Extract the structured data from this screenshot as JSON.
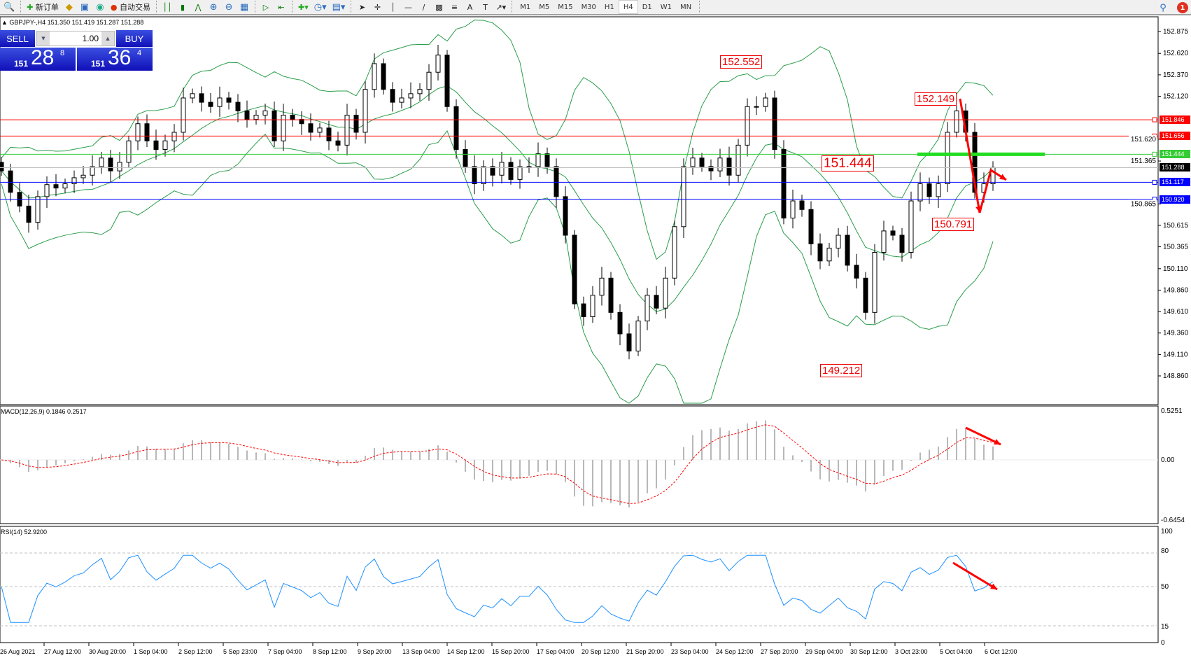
{
  "toolbar": {
    "new_order": "新订单",
    "auto_trading": "自动交易",
    "timeframes": [
      "M1",
      "M5",
      "M15",
      "M30",
      "H1",
      "H4",
      "D1",
      "W1",
      "MN"
    ],
    "active_timeframe": "H4",
    "notification_count": "1"
  },
  "chart": {
    "title": "GBPJPY-,H4  151.350 151.419 151.287 151.288",
    "price_ticks": [
      "152.875",
      "152.620",
      "152.370",
      "152.120",
      "151.620",
      "151.365",
      "150.865",
      "150.615",
      "150.365",
      "150.110",
      "149.860",
      "149.610",
      "149.360",
      "149.110",
      "148.860"
    ],
    "price_range": [
      148.86,
      152.875
    ],
    "levels": [
      {
        "price": 151.846,
        "label": "151.846",
        "color": "#ff0000"
      },
      {
        "price": 151.656,
        "label": "151.656",
        "color": "#ff0000"
      },
      {
        "price": 151.444,
        "label": "151.444",
        "color": "#33cc33"
      },
      {
        "price": 151.288,
        "label": "151.288",
        "color": "#000000",
        "line": "#c0c0c0"
      },
      {
        "price": 151.117,
        "label": "151.117",
        "color": "#0000ff"
      },
      {
        "price": 150.92,
        "label": "150.920",
        "color": "#0000ff"
      }
    ],
    "annotations": [
      "152.552",
      "152.149",
      "151.444",
      "150.791",
      "149.212"
    ],
    "closes": [
      151.25,
      151.0,
      150.84,
      150.65,
      150.95,
      151.09,
      151.05,
      151.1,
      151.17,
      151.2,
      151.3,
      151.4,
      151.25,
      151.35,
      151.6,
      151.8,
      151.6,
      151.5,
      151.6,
      151.7,
      152.1,
      152.15,
      152.05,
      152.0,
      152.1,
      152.05,
      151.95,
      151.85,
      151.9,
      151.95,
      151.6,
      151.9,
      151.85,
      151.8,
      151.7,
      151.75,
      151.6,
      151.55,
      151.9,
      151.7,
      152.2,
      152.5,
      152.2,
      152.05,
      152.1,
      152.15,
      152.2,
      152.4,
      152.6,
      152.0,
      151.5,
      151.3,
      151.1,
      151.3,
      151.2,
      151.35,
      151.15,
      151.3,
      151.3,
      151.45,
      151.3,
      150.95,
      150.5,
      149.7,
      149.55,
      149.8,
      150.0,
      149.6,
      149.35,
      149.15,
      149.5,
      149.8,
      149.65,
      150.0,
      150.6,
      151.3,
      151.4,
      151.3,
      151.25,
      151.4,
      151.2,
      151.55,
      152.0,
      152.0,
      152.1,
      151.5,
      150.7,
      150.9,
      150.8,
      150.4,
      150.2,
      150.35,
      150.5,
      150.15,
      150.0,
      149.6,
      150.3,
      150.55,
      150.5,
      150.3,
      150.9,
      151.1,
      150.95,
      151.1,
      151.7,
      151.95,
      151.7,
      151.0,
      151.1,
      151.29
    ],
    "colors": {
      "bands": "#2a9d4a",
      "up": "#ffffff",
      "down": "#000000",
      "arrows": "#ff0000"
    }
  },
  "trade_panel": {
    "sell_label": "SELL",
    "buy_label": "BUY",
    "lot": "1.00",
    "sell_big": "151",
    "sell_mid": "28",
    "sell_sup": "8",
    "buy_big": "151",
    "buy_mid": "36",
    "buy_sup": "4"
  },
  "macd": {
    "label": "MACD(12,26,9) 0.1846 0.2517",
    "ticks": [
      "0.5251",
      "0.00",
      "-0.6454"
    ],
    "range": [
      -0.6454,
      0.5251
    ]
  },
  "rsi": {
    "label": "RSI(14) 52.9200",
    "ticks": [
      "100",
      "80",
      "50",
      "15",
      "0"
    ],
    "levels": [
      80,
      50,
      15
    ]
  },
  "dates": [
    "26 Aug 2021",
    "27 Aug 12:00",
    "30 Aug 20:00",
    "1 Sep 04:00",
    "2 Sep 12:00",
    "5 Sep 23:00",
    "7 Sep 04:00",
    "8 Sep 12:00",
    "9 Sep 20:00",
    "13 Sep 04:00",
    "14 Sep 12:00",
    "15 Sep 20:00",
    "17 Sep 04:00",
    "20 Sep 12:00",
    "21 Sep 20:00",
    "23 Sep 04:00",
    "24 Sep 12:00",
    "27 Sep 20:00",
    "29 Sep 04:00",
    "30 Sep 12:00",
    "3 Oct 23:00",
    "5 Oct 04:00",
    "6 Oct 12:00"
  ]
}
